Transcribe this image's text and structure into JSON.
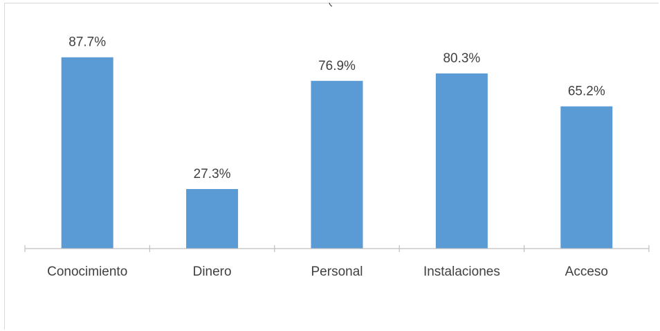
{
  "chart_data": {
    "type": "bar",
    "categories": [
      "Conocimiento",
      "Dinero",
      "Personal",
      "Instalaciones",
      "Acceso"
    ],
    "values": [
      87.7,
      27.3,
      76.9,
      80.3,
      65.2
    ],
    "data_labels": [
      "87.7%",
      "27.3%",
      "76.9%",
      "80.3%",
      "65.2%"
    ],
    "value_unit": "%",
    "ylim": [
      0,
      100
    ],
    "grid": false,
    "legend": "none",
    "bar_color": "#5b9bd5",
    "axis_color": "#bfbfbf",
    "label_color": "#404040"
  }
}
